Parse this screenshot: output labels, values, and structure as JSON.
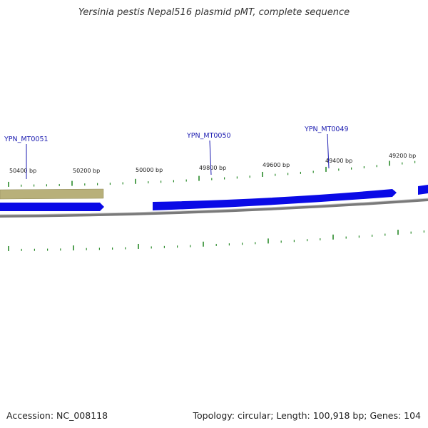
{
  "title": "Yersinia pestis Nepal516 plasmid pMT, complete sequence",
  "footer": {
    "accession": "Accession: NC_008118",
    "summary": "Topology: circular; Length: 100,918 bp; Genes: 104"
  },
  "colors": {
    "forward_gene": "#0a0ae6",
    "reverse_feature": "#b8b07a",
    "backbone": "#7a7a7a",
    "tick": "#2a8a2a",
    "gene_label": "#1a1ab0"
  },
  "ruler_labels": [
    "50400 bp",
    "50200 bp",
    "50000 bp",
    "49800 bp",
    "49600 bp",
    "49400 bp",
    "49200 bp"
  ],
  "genes": [
    {
      "name": "YPN_MT0051"
    },
    {
      "name": "YPN_MT0050"
    },
    {
      "name": "YPN_MT0049"
    }
  ]
}
